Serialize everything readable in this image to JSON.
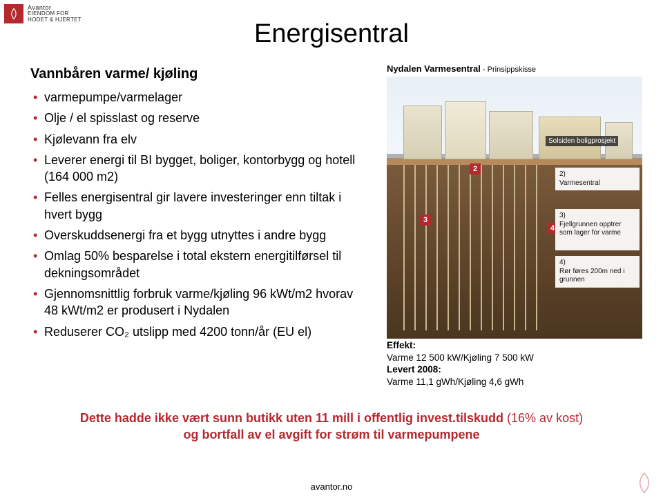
{
  "brand": {
    "name": "Avantor",
    "tagline1": "EIENDOM FOR",
    "tagline2": "HODET & HJERTET"
  },
  "title": "Energisentral",
  "section_heading": "Vannbåren varme/ kjøling",
  "bullets": [
    "varmepumpe/varmelager",
    "Olje / el spisslast og reserve",
    "Kjølevann fra elv",
    "Leverer energi til BI bygget, boliger, kontorbygg og hotell (164 000 m2)",
    "Felles energisentral gir lavere investeringer enn tiltak i hvert bygg",
    "Overskuddsenergi fra et bygg utnyttes i andre bygg",
    "Omlag 50% besparelse i total ekstern energitilførsel til dekningsområdet",
    "Gjennomsnittlig forbruk varme/kjøling 96 kWt/m2 hvorav 48 kWt/m2 er produsert i Nydalen",
    "Reduserer CO₂ utslipp med 4200 tonn/år (EU el)"
  ],
  "figure": {
    "caption_main": "Nydalen Varmesentral",
    "caption_sub": " - Prinsippskisse",
    "overlay_label": "Solsiden boligprosjekt",
    "badges": {
      "n2": "2",
      "n3": "3",
      "n4": "4"
    },
    "legend": {
      "l1": "2)\nVarmesentral",
      "l2": "3)\nFjellgrunnen opptrer som lager for varme",
      "l3": "4)\nRør føres 200m ned i grunnen"
    },
    "pipe_x": [
      24,
      40,
      56,
      72,
      88,
      104,
      120,
      136,
      152,
      168,
      184,
      200,
      216
    ]
  },
  "effekt": {
    "h1": "Effekt:",
    "line1": "Varme 12 500 kW/Kjøling 7 500 kW",
    "h2": "Levert 2008:",
    "line2": "Varme 11,1 gWh/Kjøling 4,6 gWh"
  },
  "bottom": {
    "line1_a": "Dette hadde ikke vært sunn butikk uten 11 mill i offentlig invest.tilskudd ",
    "line1_b": "(16% av kost)",
    "line2": "og bortfall av el avgift for strøm til varmepumpene"
  },
  "footer_url": "avantor.no",
  "colors": {
    "accent": "#b2292e",
    "text": "#000000"
  }
}
